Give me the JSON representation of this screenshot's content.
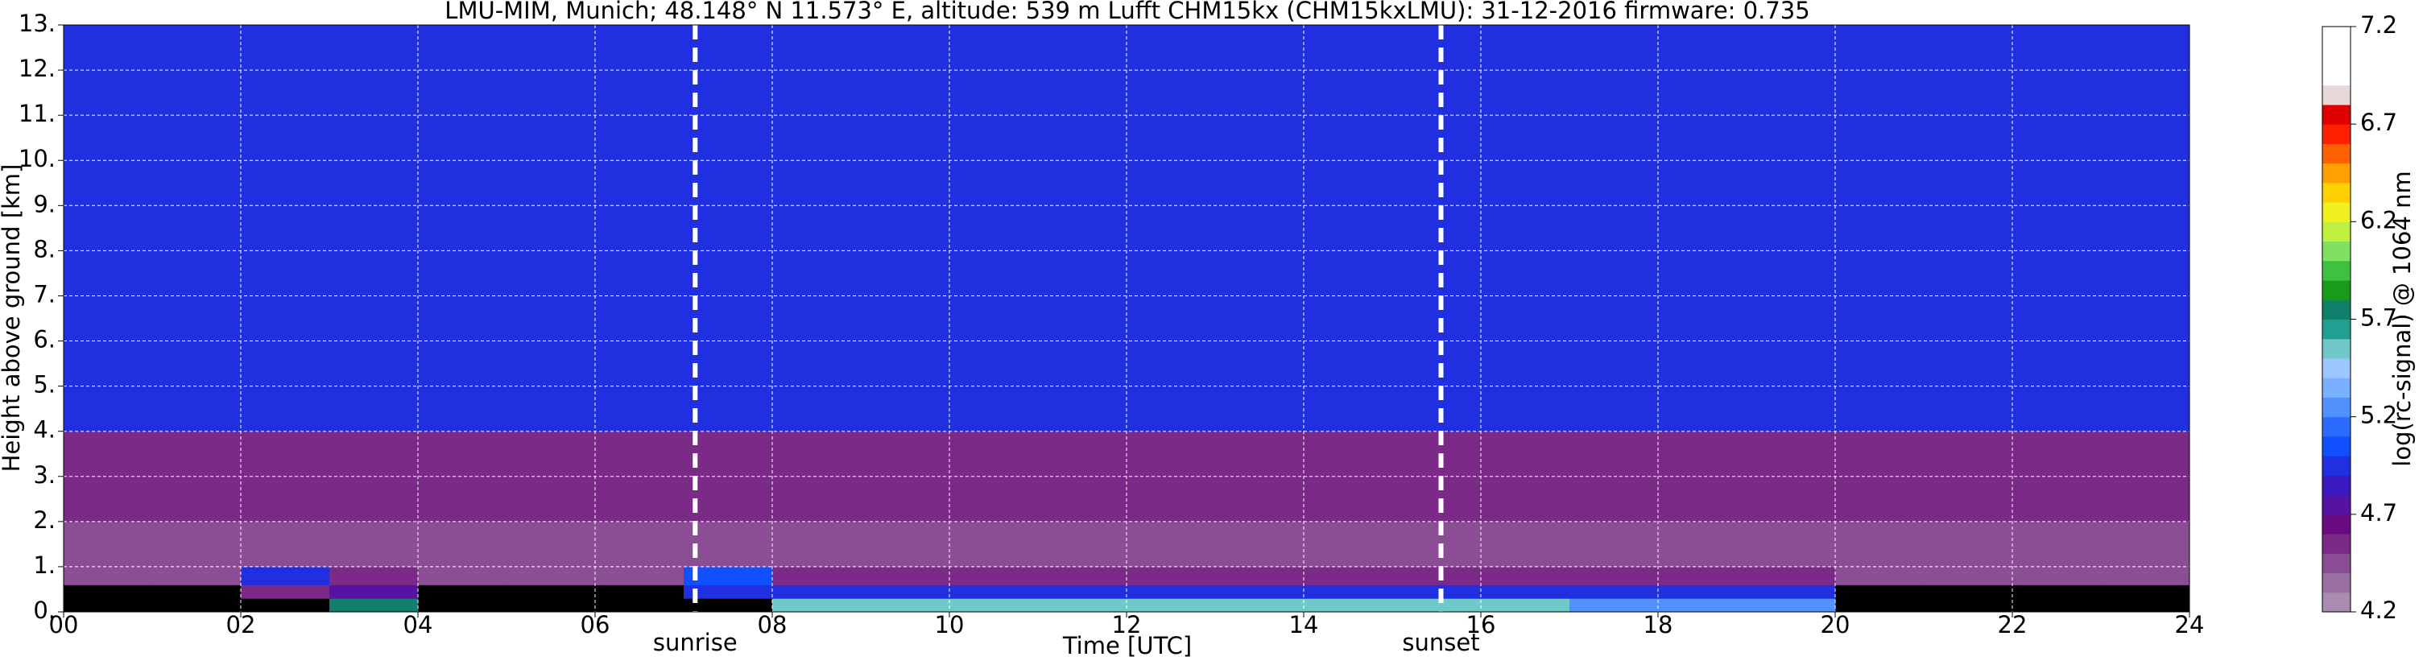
{
  "chart_data": {
    "type": "heatmap",
    "title": "LMU-MIM, Munich; 48.148° N 11.573° E, altitude: 539 m    Lufft CHM15kx (CHM15kxLMU): 31-12-2016    firmware: 0.735",
    "xlabel": "Time [UTC]",
    "ylabel": "Height above ground [km]",
    "colorbar_label": "log(rc-signal) @ 1064 nm",
    "xlim": [
      0,
      24
    ],
    "ylim": [
      0,
      13
    ],
    "xticks": [
      {
        "value": 0,
        "label": "00"
      },
      {
        "value": 2,
        "label": "02"
      },
      {
        "value": 4,
        "label": "04"
      },
      {
        "value": 6,
        "label": "06"
      },
      {
        "value": 8,
        "label": "08"
      },
      10,
      12,
      14,
      16,
      18,
      20,
      22,
      24
    ],
    "yticks": [
      {
        "value": 0,
        "label": "0."
      },
      {
        "value": 1,
        "label": "1."
      },
      {
        "value": 2,
        "label": "2."
      },
      {
        "value": 3,
        "label": "3."
      },
      {
        "value": 4,
        "label": "4."
      },
      {
        "value": 5,
        "label": "5."
      },
      {
        "value": 6,
        "label": "6."
      },
      {
        "value": 7,
        "label": "7."
      },
      {
        "value": 8,
        "label": "8."
      },
      {
        "value": 9,
        "label": "9."
      },
      {
        "value": 10,
        "label": "10."
      },
      {
        "value": 11,
        "label": "11."
      },
      {
        "value": 12,
        "label": "12."
      },
      {
        "value": 13,
        "label": "13."
      }
    ],
    "grid": true,
    "background": "#000000",
    "x_bins": [
      0,
      1,
      2,
      3,
      4,
      5,
      6,
      7,
      8,
      9,
      10,
      11,
      12,
      13,
      14,
      15,
      16,
      17,
      18,
      19,
      20,
      21,
      22,
      23,
      24
    ],
    "y_bins": [
      0,
      0.3,
      0.6,
      1,
      2,
      4,
      13
    ],
    "values": [
      [
        null,
        null,
        null,
        5.8,
        null,
        null,
        null,
        null,
        5.6,
        5.6,
        5.6,
        5.6,
        5.6,
        5.6,
        5.6,
        5.6,
        5.6,
        5.3,
        5.3,
        5.3,
        null,
        null,
        null,
        null
      ],
      [
        null,
        null,
        4.6,
        4.8,
        null,
        null,
        null,
        5.0,
        5.0,
        5.0,
        5.0,
        5.0,
        5.0,
        5.0,
        5.0,
        5.0,
        5.0,
        4.9,
        4.9,
        4.9,
        null,
        null,
        null,
        null
      ],
      [
        4.5,
        4.5,
        5.0,
        4.6,
        4.5,
        4.5,
        4.5,
        5.1,
        4.6,
        4.6,
        4.6,
        4.6,
        4.6,
        4.6,
        4.6,
        4.6,
        4.6,
        4.6,
        4.6,
        4.6,
        4.4,
        4.4,
        4.4,
        4.4
      ],
      [
        4.4,
        4.4,
        4.4,
        4.4,
        4.4,
        4.4,
        4.4,
        4.4,
        4.4,
        4.4,
        4.4,
        4.4,
        4.4,
        4.4,
        4.4,
        4.4,
        4.4,
        4.4,
        4.4,
        4.4,
        4.4,
        4.4,
        4.4,
        4.4
      ],
      [
        4.6,
        4.6,
        4.6,
        4.6,
        4.6,
        4.6,
        4.6,
        4.6,
        4.6,
        4.6,
        4.6,
        4.6,
        4.6,
        4.6,
        4.6,
        4.6,
        4.6,
        4.6,
        4.6,
        4.6,
        4.6,
        4.6,
        4.6,
        4.6
      ],
      [
        4.9,
        4.9,
        4.9,
        4.9,
        4.9,
        4.9,
        4.9,
        4.9,
        4.9,
        4.9,
        4.9,
        4.9,
        4.9,
        4.9,
        4.9,
        4.9,
        4.9,
        4.9,
        4.9,
        4.9,
        4.9,
        4.9,
        4.9,
        4.9
      ]
    ],
    "clim": [
      4.2,
      7.2
    ],
    "cticks": [
      4.2,
      4.7,
      5.2,
      5.7,
      6.2,
      6.7,
      7.2
    ],
    "colors": [
      "#a98cb0",
      "#9a70a2",
      "#8b4d94",
      "#7b2a88",
      "#6a0a80",
      "#5612a0",
      "#3a1ac0",
      "#2030e0",
      "#1050ff",
      "#2b6cff",
      "#5090ff",
      "#7ab0ff",
      "#9cc8ff",
      "#70c8c8",
      "#20a090",
      "#10806a",
      "#1a9a1a",
      "#40c040",
      "#80e060",
      "#c0f040",
      "#f0f020",
      "#ffd000",
      "#ffa000",
      "#ff6000",
      "#ff2000",
      "#e00000",
      "#e8d8d8",
      "#ffffff",
      "#ffffff",
      "#ffffff"
    ],
    "annotations": [
      {
        "label": "sunrise",
        "x": 7.13
      },
      {
        "label": "sunset",
        "x": 15.55
      }
    ]
  }
}
